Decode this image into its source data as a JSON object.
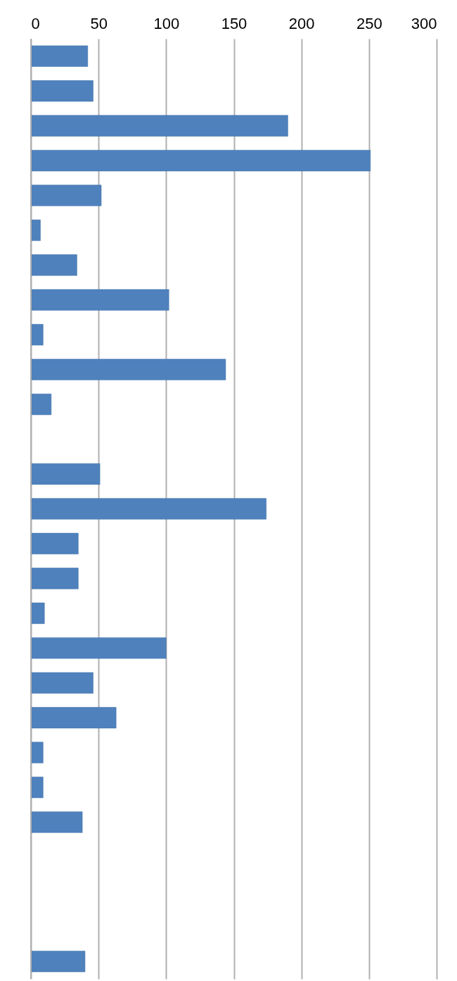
{
  "chart_data": {
    "type": "bar",
    "orientation": "horizontal",
    "categories": [
      null,
      null,
      null,
      null,
      null,
      null,
      null,
      null,
      null,
      null,
      null,
      null,
      null,
      null,
      null,
      null,
      null,
      null,
      null,
      null,
      null,
      null,
      null,
      null,
      null,
      null,
      null
    ],
    "values": [
      42,
      46,
      190,
      251,
      52,
      7,
      34,
      102,
      9,
      144,
      15,
      null,
      51,
      174,
      35,
      35,
      10,
      100,
      46,
      63,
      9,
      9,
      38,
      null,
      null,
      null,
      40
    ],
    "color": "#4f81bd",
    "xlim": [
      0,
      300
    ],
    "xticks": [
      0,
      50,
      100,
      150,
      200,
      250,
      300
    ],
    "grid": "x",
    "tick_labels": "x"
  }
}
